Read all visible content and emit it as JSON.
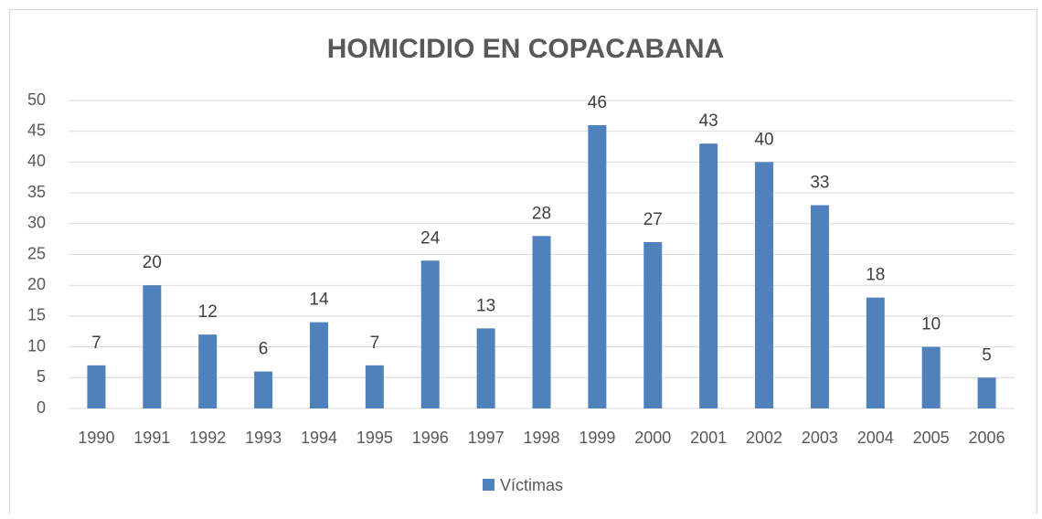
{
  "chart_data": {
    "type": "bar",
    "title": "HOMICIDIO EN COPACABANA",
    "categories": [
      "1990",
      "1991",
      "1992",
      "1993",
      "1994",
      "1995",
      "1996",
      "1997",
      "1998",
      "1999",
      "2000",
      "2001",
      "2002",
      "2003",
      "2004",
      "2005",
      "2006"
    ],
    "series": [
      {
        "name": "Víctimas",
        "color": "#4f81bd",
        "values": [
          7,
          20,
          12,
          6,
          14,
          7,
          24,
          13,
          28,
          46,
          27,
          43,
          40,
          33,
          18,
          10,
          5
        ]
      }
    ],
    "ylim": [
      0,
      50
    ],
    "yticks": [
      0,
      5,
      10,
      15,
      20,
      25,
      30,
      35,
      40,
      45,
      50
    ],
    "grid": true,
    "legend": "bottom"
  }
}
